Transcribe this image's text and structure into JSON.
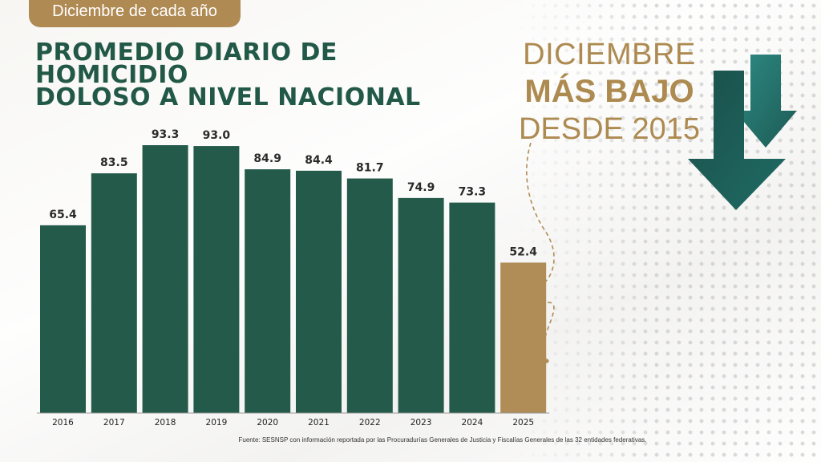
{
  "header": {
    "tag": "Diciembre de cada año",
    "title_line1": "PROMEDIO DIARIO DE HOMICIDIO",
    "title_line2": "DOLOSO A NIVEL NACIONAL"
  },
  "headline": {
    "line1": "DICIEMBRE",
    "line2": "MÁS BAJO",
    "line3": "DESDE 2015"
  },
  "source": "Fuente: SESNSP con información reportada por las Procuradurías Generales de Justicia y Fiscalías Generales de las 32 entidades federativas.",
  "colors": {
    "bar": "#245a4a",
    "highlight": "#b08c56",
    "accent_gold": "#ad8a50",
    "title_green": "#225847",
    "arrow_dark": "#1d5a54",
    "arrow_light": "#2e8a84"
  },
  "icons": [
    "down-arrow-icon",
    "down-arrow-icon"
  ],
  "chart_data": {
    "type": "bar",
    "title": "PROMEDIO DIARIO DE HOMICIDIO DOLOSO A NIVEL NACIONAL",
    "subtitle": "Diciembre de cada año",
    "categories": [
      "2016",
      "2017",
      "2018",
      "2019",
      "2020",
      "2021",
      "2022",
      "2023",
      "2024",
      "2025"
    ],
    "values": [
      65.4,
      83.5,
      93.3,
      93.0,
      84.9,
      84.4,
      81.7,
      74.9,
      73.3,
      52.4
    ],
    "data_labels": [
      "65.4",
      "83.5",
      "93.3",
      "93.0",
      "84.9",
      "84.4",
      "81.7",
      "74.9",
      "73.3",
      "52.4"
    ],
    "highlighted_category": "2025",
    "xlabel": "",
    "ylabel": "",
    "ylim": [
      0,
      93.3
    ],
    "grid": false,
    "legend": "none"
  }
}
